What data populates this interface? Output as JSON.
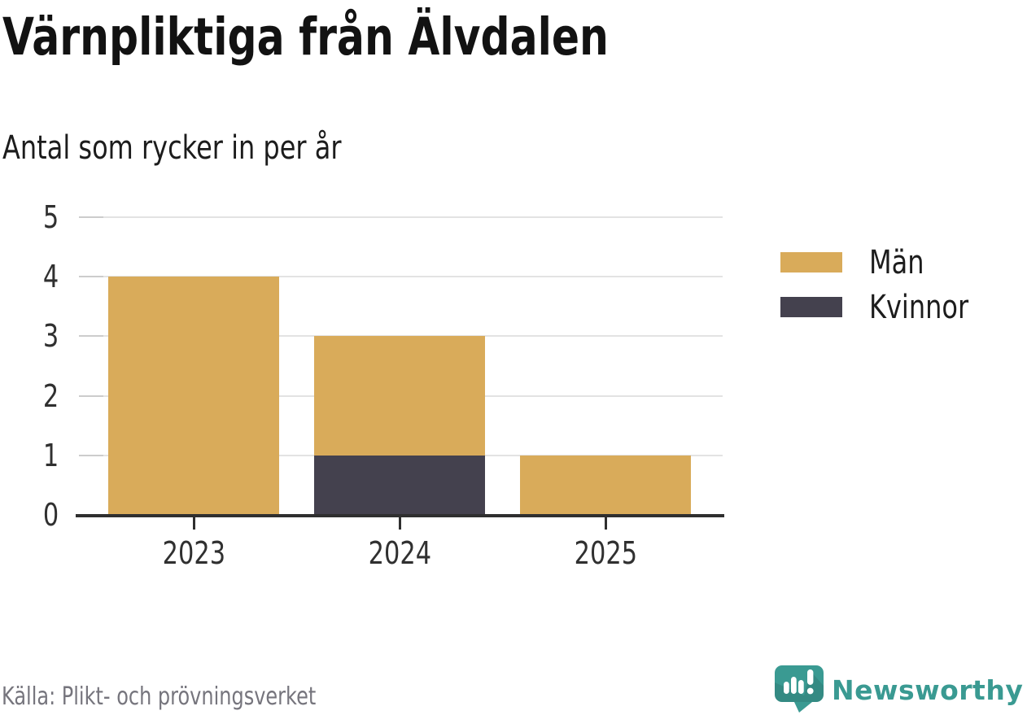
{
  "header": {
    "title": "Värnpliktiga från Älvdalen",
    "subtitle": "Antal som rycker in per år"
  },
  "chart_data": {
    "type": "bar",
    "stacked": true,
    "categories": [
      "2023",
      "2024",
      "2025"
    ],
    "series": [
      {
        "name": "Män",
        "color": "#d9ab5a",
        "values": [
          4,
          2,
          1
        ]
      },
      {
        "name": "Kvinnor",
        "color": "#44414e",
        "values": [
          0,
          1,
          0
        ]
      }
    ],
    "title": "Värnpliktiga från Älvdalen",
    "subtitle": "Antal som rycker in per år",
    "xlabel": "",
    "ylabel": "",
    "ylim": [
      0,
      5
    ],
    "yticks": [
      0,
      1,
      2,
      3,
      4,
      5
    ],
    "grid": "horizontal",
    "legend_position": "right",
    "stack_order_bottom_to_top": [
      "Kvinnor",
      "Män"
    ]
  },
  "footer": {
    "source": "Källa: Plikt- och prövningsverket",
    "brand": "Newsworthy"
  },
  "colors": {
    "bar_men": "#d9ab5a",
    "bar_women": "#44414e",
    "axis": "#2f2f2f",
    "gridline": "#e3e3e3",
    "grid_stub": "#cccccc",
    "axis_text": "#303030",
    "title_text": "#121212",
    "source_text": "#76757d",
    "brand_teal": "#3a9a92"
  }
}
